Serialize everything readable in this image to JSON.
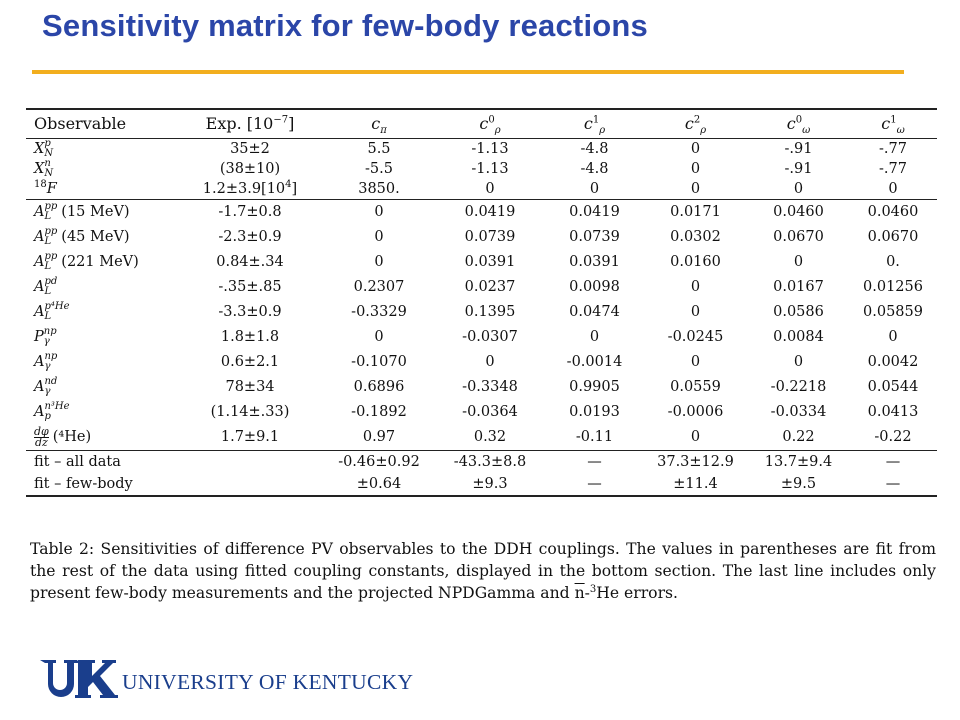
{
  "page": {
    "title": "Sensitivity matrix for few-body reactions",
    "accent_color": "#2b46a8",
    "rule_color": "#f2ae1e"
  },
  "table": {
    "headers": {
      "observable": "Observable",
      "exp": "Exp. [10",
      "exp_pow": "−7",
      "exp_close": "]",
      "c_pi": {
        "base": "c",
        "sub": "π"
      },
      "c_rho0": {
        "base": "c",
        "sup": "0",
        "sub": "ρ"
      },
      "c_rho1": {
        "base": "c",
        "sup": "1",
        "sub": "ρ"
      },
      "c_rho2": {
        "base": "c",
        "sup": "2",
        "sub": "ρ"
      },
      "c_omega0": {
        "base": "c",
        "sup": "0",
        "sub": "ω"
      },
      "c_omega1": {
        "base": "c",
        "sup": "1",
        "sub": "ω"
      }
    },
    "rows": [
      {
        "obs": {
          "base": "X",
          "sup": "p",
          "sub": "N"
        },
        "exp": "35±2",
        "cells": [
          "5.5",
          "-1.13",
          "-4.8",
          "0",
          "-.91",
          "-.77"
        ]
      },
      {
        "obs": {
          "base": "X",
          "sup": "n",
          "sub": "N"
        },
        "exp": "(38±10)",
        "cells": [
          "-5.5",
          "-1.13",
          "-4.8",
          "0",
          "-.91",
          "-.77"
        ]
      },
      {
        "obs": {
          "pre": "18",
          "base": "F"
        },
        "exp": "1.2±3.9[10",
        "exp_pow": "4",
        "exp_close": "]",
        "cells": [
          "3850.",
          "0",
          "0",
          "0",
          "0",
          "0"
        ]
      },
      {
        "obs": {
          "base": "A",
          "sup": "pp",
          "sub": "L",
          "note": "(15 MeV)"
        },
        "exp": "-1.7±0.8",
        "cells": [
          "0",
          "0.0419",
          "0.0419",
          "0.0171",
          "0.0460",
          "0.0460"
        ]
      },
      {
        "obs": {
          "base": "A",
          "sup": "pp",
          "sub": "L",
          "note": "(45 MeV)"
        },
        "exp": "-2.3±0.9",
        "cells": [
          "0",
          "0.0739",
          "0.0739",
          "0.0302",
          "0.0670",
          "0.0670"
        ]
      },
      {
        "obs": {
          "base": "A",
          "sup": "pp",
          "sub": "L",
          "note": "(221 MeV)"
        },
        "exp": "0.84±.34",
        "cells": [
          "0",
          "0.0391",
          "0.0391",
          "0.0160",
          "0",
          "0."
        ]
      },
      {
        "obs": {
          "base": "A",
          "sup": "pd",
          "sub": "L"
        },
        "exp": "-.35±.85",
        "cells": [
          "0.2307",
          "0.0237",
          "0.0098",
          "0",
          "0.0167",
          "0.01256"
        ]
      },
      {
        "obs": {
          "base": "A",
          "sup": "p⁴He",
          "sub": "L"
        },
        "exp": "-3.3±0.9",
        "cells": [
          "-0.3329",
          "0.1395",
          "0.0474",
          "0",
          "0.0586",
          "0.05859"
        ]
      },
      {
        "obs": {
          "base": "P",
          "sup": "np",
          "sub": "γ"
        },
        "exp": "1.8±1.8",
        "cells": [
          "0",
          "-0.0307",
          "0",
          "-0.0245",
          "0.0084",
          "0"
        ]
      },
      {
        "obs": {
          "base": "A",
          "sup": "np",
          "sub": "γ"
        },
        "exp": "0.6±2.1",
        "cells": [
          "-0.1070",
          "0",
          "-0.0014",
          "0",
          "0",
          "0.0042"
        ]
      },
      {
        "obs": {
          "base": "A",
          "sup": "nd",
          "sub": "γ"
        },
        "exp": "78±34",
        "cells": [
          "0.6896",
          "-0.3348",
          "0.9905",
          "0.0559",
          "-0.2218",
          "0.0544"
        ]
      },
      {
        "obs": {
          "base": "A",
          "sup": "n³He",
          "sub": "p"
        },
        "exp": "(1.14±.33)",
        "cells": [
          "-0.1892",
          "-0.0364",
          "0.0193",
          "-0.0006",
          "-0.0334",
          "0.0413"
        ]
      },
      {
        "obs": {
          "frac_num": "dφ",
          "frac_num_sub": "n",
          "frac_den": "dz",
          "note": "(⁴He)"
        },
        "exp": "1.7±9.1",
        "cells": [
          "0.97",
          "0.32",
          "-0.11",
          "0",
          "0.22",
          "-0.22"
        ]
      }
    ],
    "fit_rows": [
      {
        "label": "fit – all data",
        "exp": "",
        "cells": [
          "-0.46±0.92",
          "-43.3±8.8",
          "—",
          "37.3±12.9",
          "13.7±9.4",
          "—"
        ]
      },
      {
        "label": "fit – few-body",
        "exp": "",
        "cells": [
          "±0.64",
          "±9.3",
          "—",
          "±11.4",
          "±9.5",
          "—"
        ]
      }
    ]
  },
  "caption": {
    "part1": "Table 2: Sensitivities of difference PV observables to the DDH couplings. The values in parentheses are fit from the rest of the data using fitted coupling constants, displayed in the bottom section. The last line includes only present few-body measurements and the projected NPDGamma and ",
    "vec_n": "n",
    "part2": "-",
    "pow3": "3",
    "part3": "He errors."
  },
  "logo": {
    "text": "UNIVERSITY OF KENTUCKY",
    "mark_letters": "UK",
    "color": "#1a3e8c"
  }
}
